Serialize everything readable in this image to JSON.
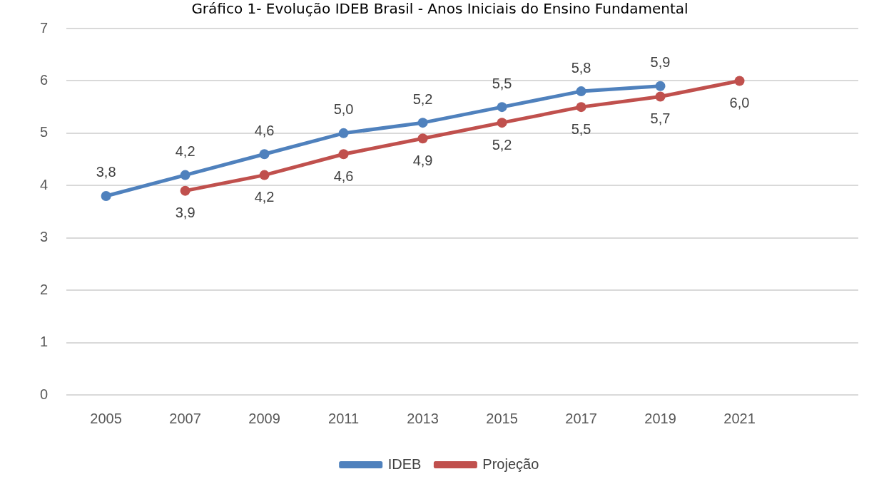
{
  "chart_data": {
    "type": "line",
    "title": "Gráfico 1- Evolução IDEB Brasil - Anos Iniciais do Ensino Fundamental",
    "categories": [
      "2005",
      "2007",
      "2009",
      "2011",
      "2013",
      "2015",
      "2017",
      "2019",
      "2021",
      null
    ],
    "series": [
      {
        "name": "IDEB",
        "color": "#4f81bd",
        "values": [
          3.8,
          4.2,
          4.6,
          5.0,
          5.2,
          5.5,
          5.8,
          5.9,
          null,
          null
        ],
        "value_labels": [
          "3,8",
          "4,2",
          "4,6",
          "5,0",
          "5,2",
          "5,5",
          "5,8",
          "5,9",
          null,
          null
        ]
      },
      {
        "name": "Projeção",
        "color": "#c0504d",
        "values": [
          null,
          3.9,
          4.2,
          4.6,
          4.9,
          5.2,
          5.5,
          5.7,
          6.0,
          null
        ],
        "value_labels": [
          null,
          "3,9",
          "4,2",
          "4,6",
          "4,9",
          "5,2",
          "5,5",
          "5,7",
          "6,0",
          null
        ]
      }
    ],
    "ylim": [
      0,
      7
    ],
    "yticks": [
      0,
      1,
      2,
      3,
      4,
      5,
      6,
      7
    ],
    "grid": "y",
    "legend": "bottom",
    "marker": "circle",
    "line_style": "solid"
  }
}
